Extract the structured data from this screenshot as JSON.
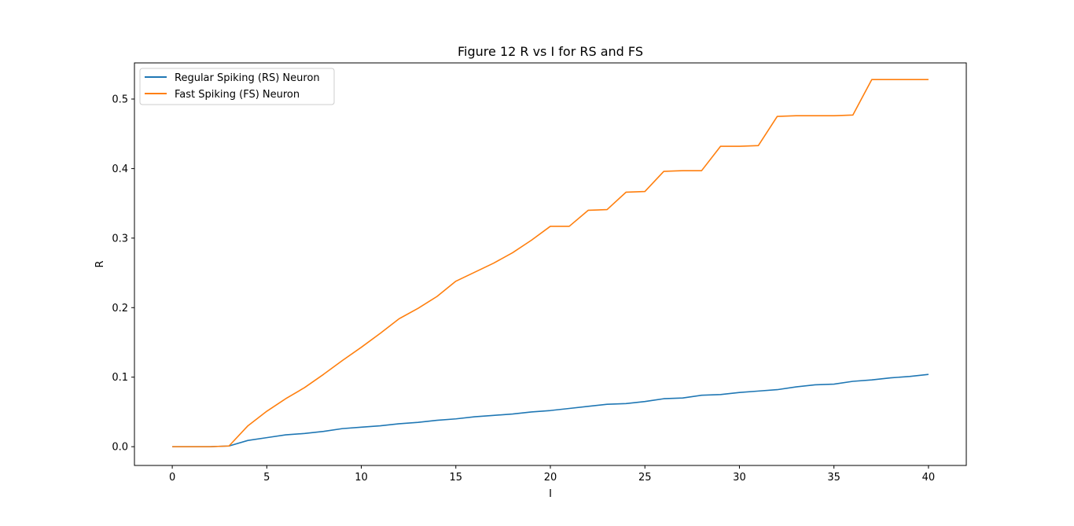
{
  "chart_data": {
    "type": "line",
    "title": "Figure 12 R vs I for RS and FS",
    "xlabel": "I",
    "ylabel": "R",
    "xlim": [
      -2,
      42
    ],
    "ylim": [
      -0.027,
      0.552
    ],
    "xticks": [
      0,
      5,
      10,
      15,
      20,
      25,
      30,
      35,
      40
    ],
    "yticks": [
      0.0,
      0.1,
      0.2,
      0.3,
      0.4,
      0.5
    ],
    "xtick_labels": [
      "0",
      "5",
      "10",
      "15",
      "20",
      "25",
      "30",
      "35",
      "40"
    ],
    "ytick_labels": [
      "0.0",
      "0.1",
      "0.2",
      "0.3",
      "0.4",
      "0.5"
    ],
    "grid": false,
    "legend_position": "upper-left",
    "x": [
      0,
      1,
      2,
      3,
      4,
      5,
      6,
      7,
      8,
      9,
      10,
      11,
      12,
      13,
      14,
      15,
      16,
      17,
      18,
      19,
      20,
      21,
      22,
      23,
      24,
      25,
      26,
      27,
      28,
      29,
      30,
      31,
      32,
      33,
      34,
      35,
      36,
      37,
      38,
      39,
      40
    ],
    "series": [
      {
        "name": "Regular Spiking (RS) Neuron",
        "color": "#1f77b4",
        "values": [
          0.0,
          0.0,
          0.0,
          0.001,
          0.009,
          0.013,
          0.017,
          0.019,
          0.022,
          0.026,
          0.028,
          0.03,
          0.033,
          0.035,
          0.038,
          0.04,
          0.043,
          0.045,
          0.047,
          0.05,
          0.052,
          0.055,
          0.058,
          0.061,
          0.062,
          0.065,
          0.069,
          0.07,
          0.074,
          0.075,
          0.078,
          0.08,
          0.082,
          0.086,
          0.089,
          0.09,
          0.094,
          0.096,
          0.099,
          0.101,
          0.104
        ]
      },
      {
        "name": "Fast Spiking (FS) Neuron",
        "color": "#ff7f0e",
        "values": [
          0.0,
          0.0,
          0.0,
          0.001,
          0.03,
          0.051,
          0.069,
          0.085,
          0.104,
          0.124,
          0.143,
          0.163,
          0.184,
          0.199,
          0.216,
          0.238,
          0.251,
          0.264,
          0.279,
          0.297,
          0.317,
          0.317,
          0.34,
          0.341,
          0.366,
          0.367,
          0.396,
          0.397,
          0.397,
          0.432,
          0.432,
          0.433,
          0.475,
          0.476,
          0.476,
          0.476,
          0.477,
          0.528,
          0.528,
          0.528,
          0.528
        ]
      }
    ]
  }
}
